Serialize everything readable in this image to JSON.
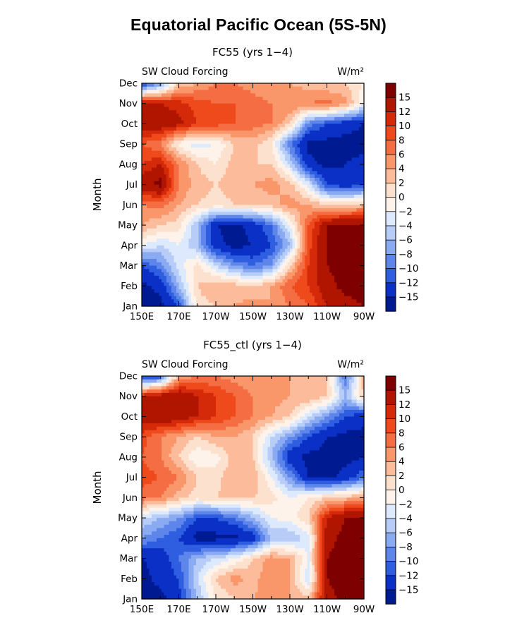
{
  "figure": {
    "title": "Equatorial Pacific Ocean (5S-5N)"
  },
  "chart_data": [
    {
      "type": "heatmap",
      "title": "FC55 (yrs 1−4)",
      "left_label": "SW Cloud Forcing",
      "units": "W/m²",
      "ylabel": "Month",
      "x_ticks": [
        "150E",
        "170E",
        "170W",
        "150W",
        "130W",
        "110W",
        "90W"
      ],
      "x_lon": [
        150,
        170,
        190,
        210,
        230,
        250,
        270
      ],
      "y_ticks": [
        "Jan",
        "Feb",
        "Mar",
        "Apr",
        "May",
        "Jun",
        "Jul",
        "Aug",
        "Sep",
        "Oct",
        "Nov",
        "Dec"
      ],
      "colorbar": {
        "labels": [
          "15",
          "12",
          "10",
          "8",
          "6",
          "4",
          "2",
          "0",
          "−2",
          "−4",
          "−6",
          "−8",
          "−10",
          "−12",
          "−15"
        ],
        "colors": [
          "#7f0000",
          "#b01500",
          "#d42a0a",
          "#ee4a1c",
          "#f46d43",
          "#f9966a",
          "#fcbc9c",
          "#fde1cf",
          "#fdf3ea",
          "#dde9fc",
          "#b7cdf7",
          "#8aabf2",
          "#5e86ea",
          "#2f5ee0",
          "#0a30c6",
          "#001a92"
        ]
      },
      "levels": [
        -15,
        -12,
        -10,
        -8,
        -6,
        -4,
        -2,
        0,
        2,
        4,
        6,
        8,
        10,
        12,
        15
      ],
      "grid": {
        "lon": [
          150,
          160,
          170,
          180,
          190,
          200,
          210,
          220,
          230,
          240,
          250,
          260,
          270
        ],
        "months": [
          "Jan",
          "Feb",
          "Mar",
          "Apr",
          "May",
          "Jun",
          "Jul",
          "Aug",
          "Sep",
          "Oct",
          "Nov",
          "Dec"
        ],
        "values": [
          [
            -17,
            -16,
            -12,
            1,
            2,
            4,
            5,
            4,
            6,
            8,
            12,
            14,
            15
          ],
          [
            -16,
            -14,
            -6,
            2,
            4,
            3,
            2,
            4,
            8,
            10,
            14,
            16,
            16
          ],
          [
            -12,
            -9,
            -3,
            1,
            -4,
            -8,
            -10,
            -8,
            2,
            10,
            15,
            16,
            15
          ],
          [
            -2,
            -4,
            -2,
            -6,
            -14,
            -16,
            -15,
            -12,
            -6,
            9,
            15,
            16,
            16
          ],
          [
            4,
            2,
            1,
            -6,
            -15,
            -16,
            -14,
            -10,
            -2,
            8,
            15,
            16,
            16
          ],
          [
            6,
            7,
            4,
            2,
            1,
            2,
            2,
            3,
            5,
            4,
            2,
            2,
            3
          ],
          [
            14,
            16,
            6,
            3,
            2,
            3,
            4,
            5,
            3,
            -3,
            -12,
            -14,
            -12
          ],
          [
            10,
            12,
            6,
            2,
            0,
            3,
            2,
            2,
            -4,
            -14,
            -16,
            -15,
            -14
          ],
          [
            8,
            6,
            -1,
            -3,
            -2,
            2,
            3,
            0,
            -10,
            -16,
            -16,
            -16,
            -16
          ],
          [
            15,
            14,
            13,
            10,
            9,
            8,
            7,
            6,
            2,
            -9,
            -12,
            -14,
            -15
          ],
          [
            13,
            12,
            11,
            9,
            8,
            8,
            7,
            6,
            6,
            6,
            7,
            5,
            -2
          ],
          [
            -14,
            -8,
            2,
            4,
            6,
            6,
            5,
            4,
            4,
            3,
            2,
            2,
            0
          ]
        ]
      }
    },
    {
      "type": "heatmap",
      "title": "FC55_ctl (yrs 1−4)",
      "left_label": "SW Cloud Forcing",
      "units": "W/m²",
      "ylabel": "Month",
      "x_ticks": [
        "150E",
        "170E",
        "170W",
        "150W",
        "130W",
        "110W",
        "90W"
      ],
      "x_lon": [
        150,
        170,
        190,
        210,
        230,
        250,
        270
      ],
      "y_ticks": [
        "Jan",
        "Feb",
        "Mar",
        "Apr",
        "May",
        "Jun",
        "Jul",
        "Aug",
        "Sep",
        "Oct",
        "Nov",
        "Dec"
      ],
      "colorbar": {
        "labels": [
          "15",
          "12",
          "10",
          "8",
          "6",
          "4",
          "2",
          "0",
          "−2",
          "−4",
          "−6",
          "−8",
          "−10",
          "−12",
          "−15"
        ],
        "colors": [
          "#7f0000",
          "#b01500",
          "#d42a0a",
          "#ee4a1c",
          "#f46d43",
          "#f9966a",
          "#fcbc9c",
          "#fde1cf",
          "#fdf3ea",
          "#dde9fc",
          "#b7cdf7",
          "#8aabf2",
          "#5e86ea",
          "#2f5ee0",
          "#0a30c6",
          "#001a92"
        ]
      },
      "levels": [
        -15,
        -12,
        -10,
        -8,
        -6,
        -4,
        -2,
        0,
        2,
        4,
        6,
        8,
        10,
        12,
        15
      ],
      "grid": {
        "lon": [
          150,
          160,
          170,
          180,
          190,
          200,
          210,
          220,
          230,
          240,
          250,
          260,
          270
        ],
        "months": [
          "Jan",
          "Feb",
          "Mar",
          "Apr",
          "May",
          "Jun",
          "Jul",
          "Aug",
          "Sep",
          "Oct",
          "Nov",
          "Dec"
        ],
        "values": [
          [
            -17,
            -16,
            -13,
            -6,
            0,
            2,
            4,
            5,
            4,
            3,
            14,
            16,
            16
          ],
          [
            -16,
            -14,
            -12,
            -4,
            2,
            5,
            3,
            6,
            4,
            -4,
            15,
            16,
            16
          ],
          [
            -15,
            -14,
            -10,
            -6,
            -4,
            -2,
            2,
            5,
            4,
            -2,
            15,
            16,
            16
          ],
          [
            -8,
            -10,
            -12,
            -16,
            -16,
            -16,
            -14,
            -6,
            -6,
            -3,
            14,
            16,
            16
          ],
          [
            -4,
            -6,
            -8,
            -12,
            -12,
            -10,
            -6,
            -2,
            -1,
            2,
            12,
            15,
            16
          ],
          [
            7,
            6,
            3,
            1,
            2,
            3,
            2,
            1,
            -2,
            0,
            2,
            3,
            4
          ],
          [
            9,
            8,
            6,
            2,
            1,
            4,
            4,
            -2,
            -8,
            -15,
            -16,
            -14,
            -10
          ],
          [
            8,
            6,
            2,
            -2,
            -1,
            3,
            2,
            -6,
            -14,
            -16,
            -16,
            -16,
            -15
          ],
          [
            9,
            6,
            4,
            2,
            4,
            4,
            2,
            -4,
            -8,
            -12,
            -15,
            -16,
            -16
          ],
          [
            14,
            15,
            14,
            12,
            10,
            8,
            6,
            4,
            2,
            -4,
            -8,
            -12,
            -14
          ],
          [
            12,
            14,
            15,
            12,
            10,
            8,
            6,
            5,
            4,
            4,
            2,
            -6,
            2
          ],
          [
            -14,
            -12,
            4,
            6,
            6,
            5,
            4,
            4,
            4,
            3,
            2,
            -10,
            4
          ]
        ]
      }
    }
  ]
}
